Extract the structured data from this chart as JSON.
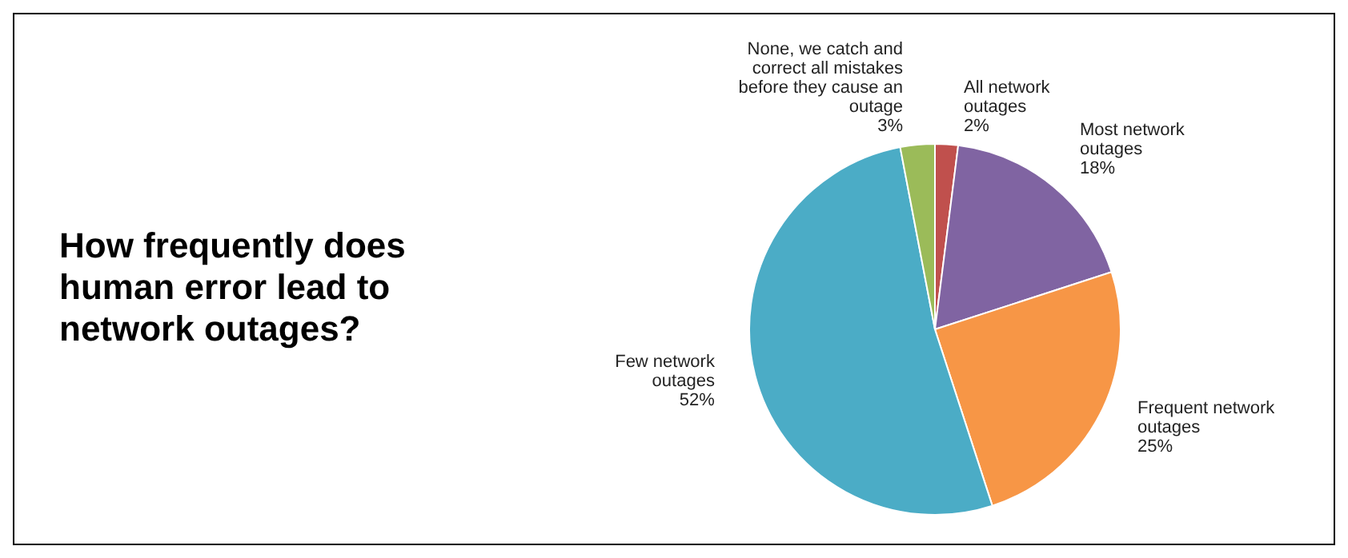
{
  "chart_data": {
    "type": "pie",
    "title": "How frequently does human error lead to network outages?",
    "categories": [
      "All network outages",
      "Most network outages",
      "Frequent network outages",
      "Few network outages",
      "None, we catch and correct all mistakes before they cause an outage"
    ],
    "values": [
      2,
      18,
      25,
      52,
      3
    ],
    "colors": [
      "#c0504d",
      "#8064a2",
      "#f79646",
      "#4bacc6",
      "#9bbb59"
    ],
    "value_labels": [
      "2%",
      "18%",
      "25%",
      "52%",
      "3%"
    ],
    "legend": false
  }
}
